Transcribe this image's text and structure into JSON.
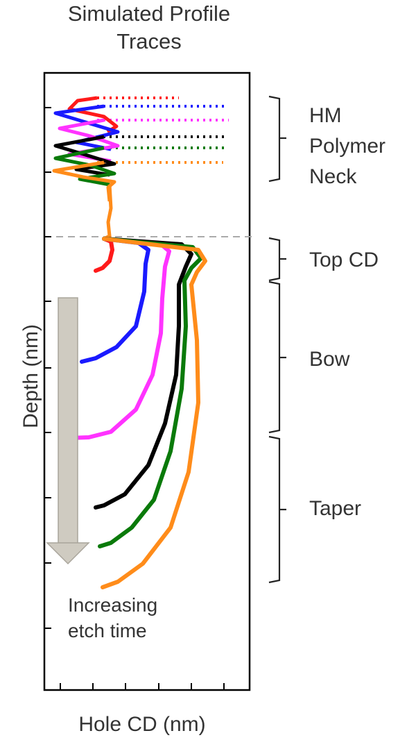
{
  "chart_data": {
    "type": "scatter",
    "title": "Simulated Profile Traces",
    "xlabel": "Hole CD (nm)",
    "ylabel": "Depth (nm)",
    "region_labels": [
      "HM Polymer Neck",
      "Top CD",
      "Bow",
      "Taper"
    ],
    "annotation": "Increasing etch time",
    "x_ticks_count": 6,
    "y_ticks_count": 9,
    "grid": false,
    "series": [
      {
        "color": "#ff1a1a",
        "x": [
          1.9,
          2.0,
          1.6,
          1.6,
          2.0,
          2.05,
          2.05,
          2.1,
          2.1,
          2.1,
          2.1,
          2.15,
          3.0,
          4.0,
          5.0,
          6.0,
          7.0,
          8.0,
          8.3,
          5.0,
          3.6,
          3.5,
          3.0,
          2.2
        ],
        "y": [
          7.4,
          8.0,
          8.7,
          9.5,
          10.2,
          11.0,
          12.0,
          13.0,
          14.0,
          15.0,
          16.0,
          17.0,
          17.2,
          17.0,
          16.6,
          16.2,
          15.8,
          15.4,
          15.0,
          14.5,
          14.0,
          13.5,
          13.0,
          12.5
        ]
      },
      {
        "color": "#1a1aff",
        "x": [
          1.0,
          1.2,
          1.3,
          1.5,
          2.0,
          2.7,
          3.0,
          3.05,
          3.0,
          2.95,
          3.1,
          3.2,
          2.0,
          1.0,
          0.5,
          0.0
        ],
        "y": [
          4.6,
          5.2,
          6.0,
          6.8,
          7.5,
          8.3,
          9.0,
          9.8,
          10.5,
          11.0,
          11.5,
          12.0,
          12.5,
          13.0,
          13.5,
          14.0
        ]
      },
      {
        "color": "#ff33ff",
        "x": [
          0.4,
          1.0,
          1.7,
          2.3,
          2.9,
          3.3,
          3.45,
          3.5,
          3.55,
          3.6,
          3.65,
          3.75,
          3.8,
          3.9,
          4.0,
          4.1
        ],
        "y": [
          3.4,
          3.6,
          4.3,
          5.3,
          6.4,
          7.5,
          8.6,
          9.6,
          10.5,
          11.1,
          11.6,
          12.0,
          12.3,
          12.6,
          12.9,
          13.2
        ]
      },
      {
        "color": "#000000",
        "x": [
          1.2,
          1.7,
          2.5,
          3.2,
          3.8,
          4.2,
          4.25,
          4.25,
          4.2,
          4.15,
          4.1,
          4.05,
          4.1,
          4.3,
          4.6,
          4.8,
          4.9,
          4.95,
          5.0
        ],
        "y": [
          2.2,
          2.3,
          2.8,
          3.6,
          4.8,
          6.0,
          7.0,
          8.0,
          9.0,
          10.0,
          11.0,
          11.5,
          11.8,
          12.0,
          12.1,
          12.15,
          12.2,
          12.25,
          12.3
        ]
      },
      {
        "color": "#0a7a0a",
        "x": [
          1.4,
          2.0,
          2.7,
          3.4,
          4.0,
          4.4,
          4.55,
          4.6,
          4.55,
          4.5,
          4.45,
          4.4,
          4.45,
          4.6,
          4.8,
          5.0,
          5.1
        ],
        "y": [
          0.8,
          1.1,
          1.9,
          2.9,
          4.1,
          5.4,
          6.6,
          7.8,
          8.8,
          9.8,
          10.8,
          11.4,
          11.8,
          12.0,
          12.1,
          12.2,
          12.3
        ]
      },
      {
        "color": "#ff8c1a",
        "x": [
          1.3,
          2.0,
          2.9,
          3.7,
          4.3,
          4.7,
          4.9,
          4.95,
          4.9,
          4.85,
          4.8,
          4.75,
          4.8,
          4.95,
          5.1,
          5.2
        ],
        "y": [
          -0.9,
          -0.6,
          0.3,
          1.5,
          2.8,
          4.2,
          5.5,
          6.8,
          8.0,
          9.2,
          10.3,
          11.1,
          11.6,
          11.9,
          12.1,
          12.25
        ]
      }
    ]
  }
}
